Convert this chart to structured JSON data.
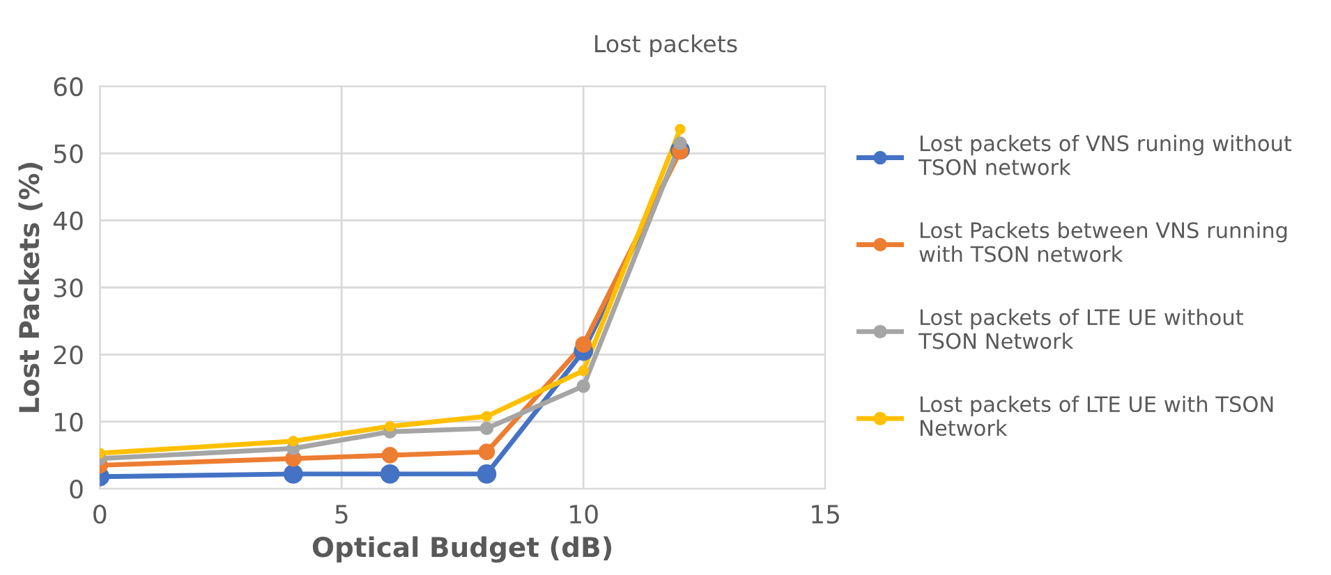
{
  "chart_data": {
    "type": "line",
    "title": "Lost packets",
    "xlabel": "Optical Budget (dB)",
    "ylabel": "Lost Packets (%)",
    "x": [
      0,
      4,
      6,
      8,
      10,
      12
    ],
    "series": [
      {
        "name": "Lost packets of VNS runing without TSON network",
        "color": "#4472c4",
        "values": [
          1.8,
          2.2,
          2.2,
          2.2,
          20.5,
          50.5
        ]
      },
      {
        "name": "Lost Packets between VNS running with TSON network",
        "color": "#ed7d31",
        "values": [
          3.5,
          4.5,
          5,
          5.5,
          21.5,
          50.3
        ]
      },
      {
        "name": "Lost packets of LTE UE without TSON Network",
        "color": "#a5a5a5",
        "values": [
          4.5,
          6,
          8.5,
          9,
          15.3,
          51.5
        ]
      },
      {
        "name": "Lost packets of LTE UE with TSON Network",
        "color": "#ffc000",
        "values": [
          5.3,
          7.1,
          9.3,
          10.8,
          17.6,
          53.6
        ]
      }
    ],
    "xlim": [
      0,
      15
    ],
    "xticks": [
      0,
      5,
      10,
      15
    ],
    "ylim": [
      0,
      60
    ],
    "yticks": [
      0,
      10,
      20,
      30,
      40,
      50,
      60
    ],
    "grid": true,
    "legend": "right",
    "marker": "circle",
    "line_style": "solid"
  }
}
